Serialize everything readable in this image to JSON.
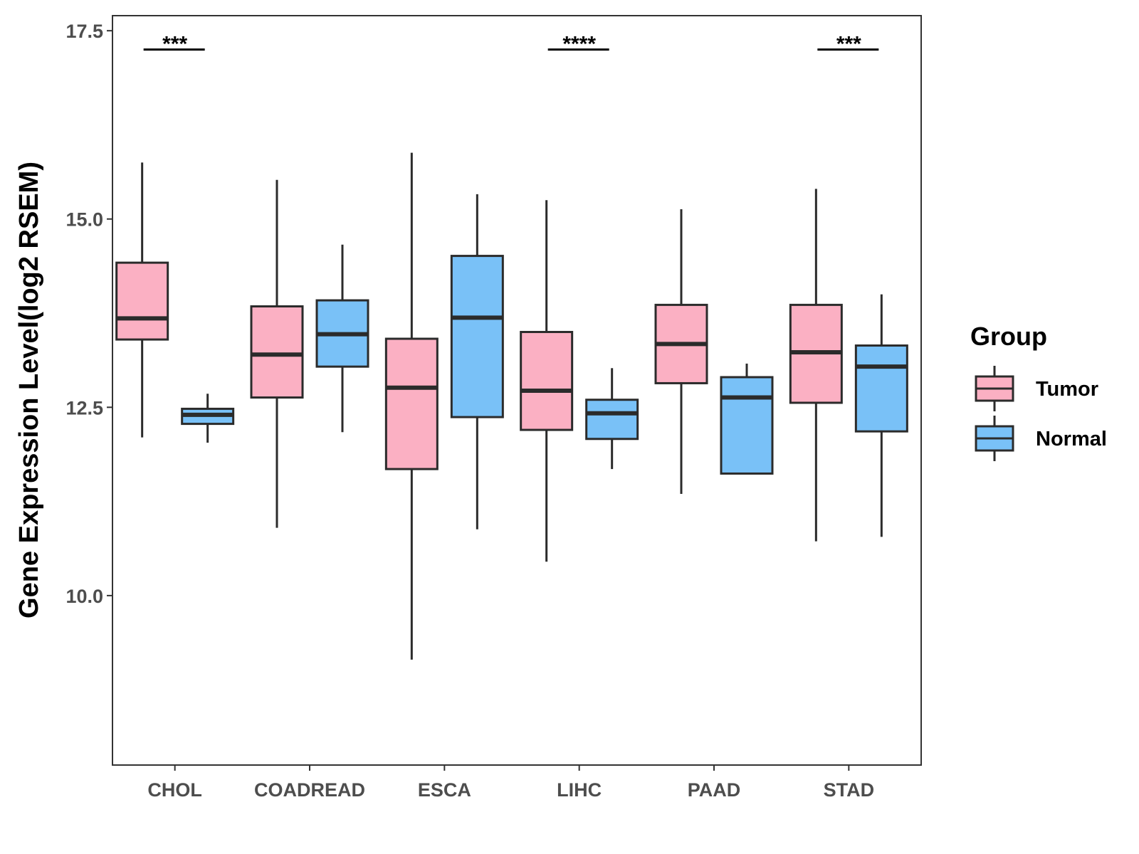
{
  "chart_data": {
    "type": "boxplot",
    "title": "",
    "xlabel": "",
    "ylabel": "Gene Expression Level(log2 RSEM)",
    "ylim": [
      7.75,
      17.7
    ],
    "yticks": [
      10.0,
      12.5,
      15.0,
      17.5
    ],
    "ytick_labels": [
      "10.0",
      "12.5",
      "15.0",
      "17.5"
    ],
    "categories": [
      "CHOL",
      "COADREAD",
      "ESCA",
      "LIHC",
      "PAAD",
      "STAD"
    ],
    "colors": {
      "Tumor": "#fbb0c3",
      "Normal": "#79c1f7",
      "stroke": "#2b2b2b"
    },
    "legend": {
      "title": "Group",
      "position": "right"
    },
    "series": [
      {
        "name": "Tumor",
        "boxes": [
          {
            "whisker_low": 12.1,
            "q1": 13.4,
            "median": 13.68,
            "q3": 14.42,
            "whisker_high": 15.75
          },
          {
            "whisker_low": 10.9,
            "q1": 12.63,
            "median": 13.2,
            "q3": 13.84,
            "whisker_high": 15.52
          },
          {
            "whisker_low": 9.15,
            "q1": 11.68,
            "median": 12.76,
            "q3": 13.41,
            "whisker_high": 15.88
          },
          {
            "whisker_low": 10.45,
            "q1": 12.2,
            "median": 12.72,
            "q3": 13.5,
            "whisker_high": 15.25
          },
          {
            "whisker_low": 11.35,
            "q1": 12.82,
            "median": 13.34,
            "q3": 13.86,
            "whisker_high": 15.13
          },
          {
            "whisker_low": 10.72,
            "q1": 12.56,
            "median": 13.23,
            "q3": 13.86,
            "whisker_high": 15.4
          }
        ]
      },
      {
        "name": "Normal",
        "boxes": [
          {
            "whisker_low": 12.03,
            "q1": 12.28,
            "median": 12.4,
            "q3": 12.48,
            "whisker_high": 12.68
          },
          {
            "whisker_low": 12.17,
            "q1": 13.04,
            "median": 13.47,
            "q3": 13.92,
            "whisker_high": 14.66
          },
          {
            "whisker_low": 10.88,
            "q1": 12.37,
            "median": 13.69,
            "q3": 14.51,
            "whisker_high": 15.33
          },
          {
            "whisker_low": 11.68,
            "q1": 12.08,
            "median": 12.42,
            "q3": 12.6,
            "whisker_high": 13.02
          },
          {
            "whisker_low": 11.62,
            "q1": 11.62,
            "median": 12.63,
            "q3": 12.9,
            "whisker_high": 13.08
          },
          {
            "whisker_low": 10.78,
            "q1": 12.18,
            "median": 13.04,
            "q3": 13.32,
            "whisker_high": 14.0
          }
        ]
      }
    ],
    "annotations": [
      {
        "category": "CHOL",
        "label": "***",
        "y": 17.25
      },
      {
        "category": "LIHC",
        "label": "****",
        "y": 17.25
      },
      {
        "category": "STAD",
        "label": "***",
        "y": 17.25
      }
    ]
  }
}
